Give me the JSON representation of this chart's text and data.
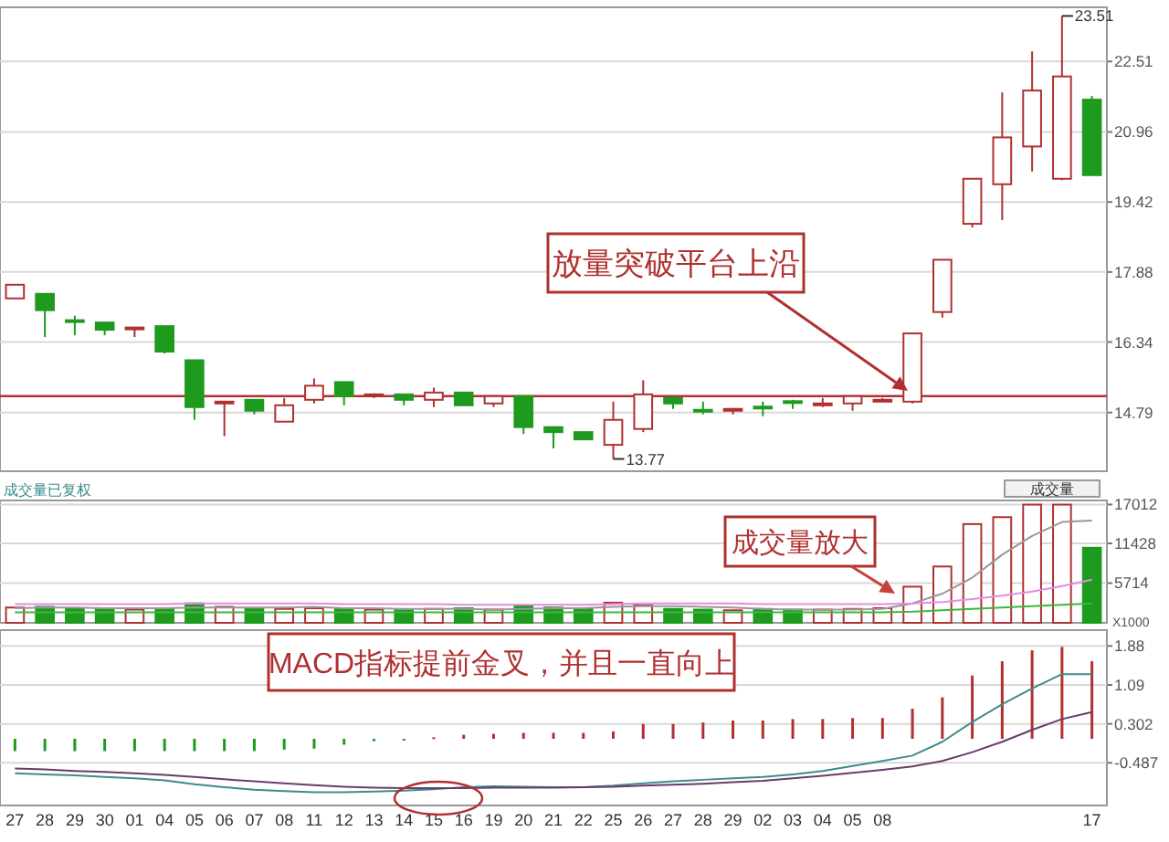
{
  "chart_data": [
    {
      "type": "candlestick",
      "categories": [
        null,
        null,
        null,
        null,
        null,
        null,
        null,
        null,
        null,
        null,
        null,
        null,
        null,
        null,
        null,
        null,
        null,
        null,
        null,
        null,
        null,
        null,
        null,
        null,
        null,
        null,
        null,
        null,
        null,
        null,
        null,
        null,
        null,
        null,
        null,
        null,
        null
      ],
      "ohlc": [
        [
          17.3,
          17.6,
          17.3,
          17.6
        ],
        [
          17.4,
          17.4,
          16.45,
          17.04
        ],
        [
          16.82,
          16.92,
          16.49,
          16.8
        ],
        [
          16.77,
          16.77,
          16.49,
          16.61
        ],
        [
          16.64,
          16.66,
          16.45,
          16.66
        ],
        [
          16.69,
          16.69,
          16.09,
          16.13
        ],
        [
          15.94,
          15.94,
          14.63,
          14.91
        ],
        [
          15.0,
          15.03,
          14.27,
          15.03
        ],
        [
          15.07,
          15.07,
          14.75,
          14.83
        ],
        [
          14.59,
          15.11,
          14.59,
          14.95
        ],
        [
          15.07,
          15.54,
          14.99,
          15.38
        ],
        [
          15.46,
          15.46,
          14.95,
          15.15
        ],
        [
          15.17,
          15.21,
          15.11,
          15.19
        ],
        [
          15.19,
          15.19,
          14.95,
          15.07
        ],
        [
          15.07,
          15.34,
          14.91,
          15.23
        ],
        [
          15.23,
          15.25,
          14.95,
          14.95
        ],
        [
          14.99,
          15.17,
          14.91,
          15.15
        ],
        [
          15.15,
          15.15,
          14.32,
          14.47
        ],
        [
          14.47,
          14.47,
          14.0,
          14.36
        ],
        [
          14.36,
          14.36,
          14.2,
          14.2
        ],
        [
          14.08,
          15.03,
          13.77,
          14.63
        ],
        [
          14.43,
          15.5,
          14.36,
          15.19
        ],
        [
          15.11,
          15.15,
          14.87,
          14.99
        ],
        [
          14.85,
          15.03,
          14.75,
          14.82
        ],
        [
          14.85,
          14.89,
          14.75,
          14.87
        ],
        [
          14.92,
          15.03,
          14.71,
          14.9
        ],
        [
          15.04,
          15.07,
          14.87,
          15.02
        ],
        [
          14.97,
          15.11,
          14.91,
          14.99
        ],
        [
          14.99,
          15.15,
          14.83,
          15.15
        ],
        [
          15.05,
          15.11,
          15.03,
          15.07
        ],
        [
          15.03,
          16.53,
          14.99,
          16.53
        ],
        [
          17.0,
          18.15,
          16.88,
          18.15
        ],
        [
          18.94,
          19.93,
          18.86,
          19.93
        ],
        [
          19.81,
          21.83,
          19.02,
          20.84
        ],
        [
          20.64,
          22.73,
          20.09,
          21.87
        ],
        [
          19.93,
          23.51,
          19.9,
          22.18
        ],
        [
          21.67,
          21.75,
          20.01,
          20.01
        ]
      ],
      "ylim": [
        13.5,
        23.7
      ],
      "yticks": [
        14.79,
        16.34,
        17.88,
        19.42,
        20.96,
        22.51
      ],
      "grid": "y",
      "tick_labels": "y",
      "ref_lines": [
        {
          "axis": "y",
          "value": 15.15,
          "color": "#b03030"
        }
      ],
      "annotations": [
        "23.51",
        "13.77",
        "放量突破平台上沿"
      ]
    },
    {
      "type": "bar",
      "title": "成交量已复权",
      "categories": [
        null,
        null,
        null,
        null,
        null,
        null,
        null,
        null,
        null,
        null,
        null,
        null,
        null,
        null,
        null,
        null,
        null,
        null,
        null,
        null,
        null,
        null,
        null,
        null,
        null,
        null,
        null,
        null,
        null,
        null,
        null,
        null,
        null,
        null,
        null,
        null,
        null
      ],
      "series": [
        {
          "type": "bar",
          "values": [
            2200,
            2300,
            2100,
            2000,
            1900,
            2100,
            2800,
            2300,
            2100,
            2000,
            2100,
            2000,
            1900,
            1800,
            2000,
            2100,
            1900,
            2400,
            2200,
            2000,
            2900,
            2500,
            2000,
            1900,
            1800,
            2000,
            1900,
            1900,
            2000,
            2100,
            5200,
            8100,
            14200,
            15200,
            17000,
            17000,
            10800
          ],
          "colors": [
            "#b03030",
            "#1e9a1e",
            "#1e9a1e",
            "#1e9a1e",
            "#b03030",
            "#1e9a1e",
            "#1e9a1e",
            "#b03030",
            "#1e9a1e",
            "#b03030",
            "#b03030",
            "#1e9a1e",
            "#b03030",
            "#1e9a1e",
            "#b03030",
            "#1e9a1e",
            "#b03030",
            "#1e9a1e",
            "#1e9a1e",
            "#1e9a1e",
            "#b03030",
            "#b03030",
            "#1e9a1e",
            "#1e9a1e",
            "#b03030",
            "#1e9a1e",
            "#1e9a1e",
            "#b03030",
            "#b03030",
            "#b03030",
            "#b03030",
            "#b03030",
            "#b03030",
            "#b03030",
            "#b03030",
            "#b03030",
            "#1e9a1e"
          ]
        },
        {
          "type": "line",
          "color": "#999999",
          "values": [
            2100,
            2200,
            2200,
            2100,
            2100,
            2100,
            2200,
            2200,
            2200,
            2200,
            2300,
            2100,
            2100,
            2000,
            2000,
            2000,
            1900,
            2000,
            2100,
            2100,
            2300,
            2400,
            2400,
            2300,
            2200,
            2000,
            1900,
            1900,
            1900,
            2000,
            2800,
            4200,
            6500,
            9800,
            12500,
            14500,
            14700
          ]
        },
        {
          "type": "line",
          "color": "#e58ae5",
          "values": [
            2700,
            2700,
            2700,
            2700,
            2700,
            2700,
            2800,
            2800,
            2800,
            2800,
            2800,
            2700,
            2700,
            2700,
            2700,
            2600,
            2600,
            2600,
            2600,
            2600,
            2700,
            2800,
            2800,
            2800,
            2800,
            2700,
            2700,
            2700,
            2700,
            2700,
            2800,
            3000,
            3400,
            3900,
            4500,
            5300,
            6200
          ]
        },
        {
          "type": "line",
          "color": "#3cb83c",
          "values": [
            1500,
            1500,
            1500,
            1500,
            1500,
            1500,
            1500,
            1500,
            1500,
            1500,
            1500,
            1500,
            1500,
            1500,
            1500,
            1500,
            1500,
            1500,
            1500,
            1500,
            1500,
            1500,
            1500,
            1500,
            1500,
            1500,
            1500,
            1500,
            1500,
            1500,
            1600,
            1800,
            2000,
            2200,
            2400,
            2600,
            2800
          ]
        }
      ],
      "ylim": [
        0,
        17600
      ],
      "yticks": [
        5714,
        11428,
        17012
      ],
      "grid": "y",
      "tick_labels": "y",
      "annotations": [
        "成交量放大",
        "成交量",
        "X1000"
      ]
    },
    {
      "type": "bar",
      "categories": [
        "27",
        "28",
        "29",
        "30",
        "01",
        "04",
        "05",
        "06",
        "07",
        "08",
        "11",
        "12",
        "13",
        "14",
        "15",
        "16",
        "19",
        "20",
        "21",
        "22",
        "25",
        "26",
        "27",
        "28",
        "29",
        "02",
        "03",
        "04",
        "05",
        "08",
        null,
        null,
        null,
        null,
        null,
        null,
        "17"
      ],
      "series": [
        {
          "type": "bar",
          "values": [
            -0.25,
            -0.25,
            -0.25,
            -0.25,
            -0.25,
            -0.25,
            -0.25,
            -0.25,
            -0.25,
            -0.22,
            -0.2,
            -0.12,
            -0.05,
            -0.02,
            0.03,
            0.08,
            0.1,
            0.12,
            0.12,
            0.12,
            0.15,
            0.3,
            0.3,
            0.33,
            0.37,
            0.37,
            0.4,
            0.4,
            0.42,
            0.42,
            0.61,
            0.84,
            1.28,
            1.57,
            1.79,
            1.86,
            1.57
          ],
          "colors": [
            "#1e9a1e",
            "#1e9a1e",
            "#1e9a1e",
            "#1e9a1e",
            "#1e9a1e",
            "#1e9a1e",
            "#1e9a1e",
            "#1e9a1e",
            "#1e9a1e",
            "#1e9a1e",
            "#1e9a1e",
            "#1e9a1e",
            "#1e9a1e",
            "#1e9a1e",
            "#b03030",
            "#b03030",
            "#b03030",
            "#b03030",
            "#b03030",
            "#b03030",
            "#b03030",
            "#b03030",
            "#b03030",
            "#b03030",
            "#b03030",
            "#b03030",
            "#b03030",
            "#b03030",
            "#b03030",
            "#b03030",
            "#b03030",
            "#b03030",
            "#b03030",
            "#b03030",
            "#b03030",
            "#b03030",
            "#b03030"
          ]
        },
        {
          "type": "line",
          "color": "#3d8c8c",
          "values": [
            -0.7,
            -0.72,
            -0.74,
            -0.77,
            -0.8,
            -0.84,
            -0.92,
            -0.98,
            -1.03,
            -1.06,
            -1.08,
            -1.08,
            -1.07,
            -1.05,
            -1.02,
            -0.98,
            -0.96,
            -0.97,
            -0.98,
            -0.98,
            -0.95,
            -0.9,
            -0.86,
            -0.83,
            -0.8,
            -0.77,
            -0.72,
            -0.65,
            -0.55,
            -0.45,
            -0.34,
            -0.06,
            0.34,
            0.7,
            1.02,
            1.31,
            1.31
          ]
        },
        {
          "type": "line",
          "color": "#6b3b6b",
          "values": [
            -0.6,
            -0.62,
            -0.65,
            -0.67,
            -0.7,
            -0.73,
            -0.77,
            -0.82,
            -0.86,
            -0.9,
            -0.94,
            -0.97,
            -0.99,
            -1.0,
            -1.0,
            -1.0,
            -0.99,
            -0.99,
            -0.99,
            -0.98,
            -0.97,
            -0.95,
            -0.93,
            -0.91,
            -0.88,
            -0.85,
            -0.8,
            -0.75,
            -0.69,
            -0.63,
            -0.56,
            -0.45,
            -0.27,
            -0.06,
            0.18,
            0.4,
            0.54
          ]
        }
      ],
      "ylim": [
        -1.35,
        2.2
      ],
      "yticks": [
        -0.487,
        0.302,
        1.09,
        1.88
      ],
      "grid": "y",
      "annotations": [
        "MACD指标提前金叉，并且一直向上"
      ]
    }
  ]
}
